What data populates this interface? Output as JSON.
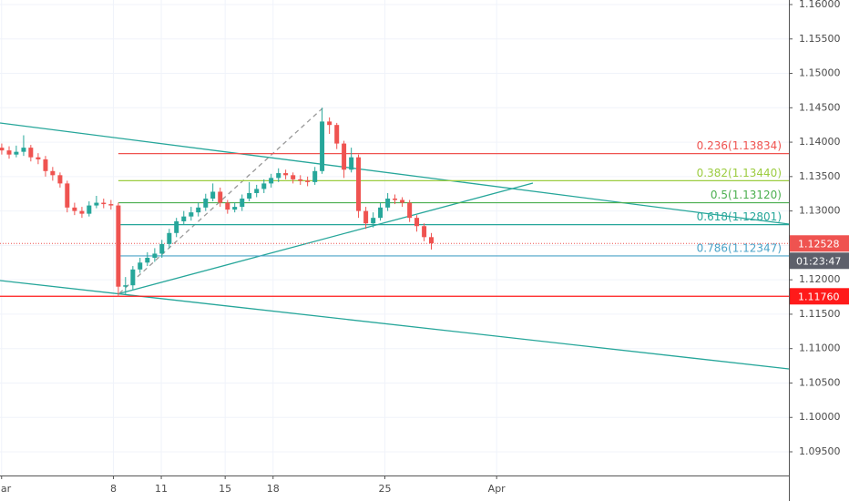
{
  "chart_data": {
    "type": "candlestick",
    "xlim": [
      0.9,
      50.3
    ],
    "xticks": [
      {
        "value": 1,
        "label": "Mar"
      },
      11,
      18,
      25,
      {
        "value": 32,
        "label": "Apr"
      },
      8,
      15
    ],
    "ylim": [
      1.09156,
      1.16066
    ],
    "yticks": [
      {
        "value": 1.16,
        "label": "1.16000"
      },
      {
        "value": 1.155,
        "label": "1.15500"
      },
      {
        "value": 1.15,
        "label": "1.15000"
      },
      {
        "value": 1.145,
        "label": "1.14500"
      },
      {
        "value": 1.14,
        "label": "1.14000"
      },
      {
        "value": 1.135,
        "label": "1.13500"
      },
      {
        "value": 1.13,
        "label": "1.13000"
      },
      {
        "value": 1.125,
        "label": "1.12500"
      },
      {
        "value": 1.12,
        "label": "1.12000"
      },
      {
        "value": 1.115,
        "label": "1.11500"
      },
      {
        "value": 1.11,
        "label": "1.11000"
      },
      {
        "value": 1.105,
        "label": "1.10500"
      },
      {
        "value": 1.1,
        "label": "1.10000"
      },
      {
        "value": 1.095,
        "label": "1.09500"
      }
    ],
    "grid": true,
    "up_color": "#26a69a",
    "down_color": "#ef5350",
    "series": [
      {
        "x": [
          1.01,
          1.47,
          1.92,
          2.38,
          2.83,
          3.29,
          3.75,
          4.2,
          4.66,
          5.11,
          5.57,
          6.03,
          6.48,
          6.94,
          7.39,
          7.85,
          8.31,
          8.76,
          9.22,
          9.67,
          10.13,
          10.59,
          11.04,
          11.5,
          11.95,
          12.41,
          12.87,
          13.32,
          13.78,
          14.23,
          14.69,
          15.15,
          15.6,
          16.06,
          16.51,
          16.97,
          17.43,
          17.88,
          18.34,
          18.79,
          19.25,
          19.71,
          20.16,
          20.62,
          21.07,
          21.53,
          21.99,
          22.44,
          22.9,
          23.35,
          23.81,
          24.27,
          24.72,
          25.18,
          25.63,
          26.09,
          26.55,
          27,
          27.46,
          27.91
        ],
        "open": [
          1.1392,
          1.1388,
          1.1382,
          1.1386,
          1.1392,
          1.1378,
          1.1375,
          1.1358,
          1.1352,
          1.134,
          1.1305,
          1.13,
          1.1296,
          1.1308,
          1.1312,
          1.131,
          1.1308,
          1.119,
          1.1192,
          1.1215,
          1.1225,
          1.1232,
          1.1238,
          1.1252,
          1.1268,
          1.1285,
          1.1292,
          1.1298,
          1.1305,
          1.1318,
          1.1328,
          1.1312,
          1.1302,
          1.1306,
          1.1318,
          1.1326,
          1.1332,
          1.134,
          1.1348,
          1.1355,
          1.1352,
          1.1346,
          1.1344,
          1.1342,
          1.1358,
          1.143,
          1.1425,
          1.1398,
          1.136,
          1.1378,
          1.13,
          1.1282,
          1.129,
          1.1305,
          1.1318,
          1.1316,
          1.1312,
          1.129,
          1.1278,
          1.1262
        ],
        "high": [
          1.1398,
          1.1394,
          1.1395,
          1.141,
          1.1396,
          1.1384,
          1.138,
          1.1364,
          1.1356,
          1.1344,
          1.1312,
          1.1306,
          1.1314,
          1.1322,
          1.1318,
          1.1316,
          1.1312,
          1.1204,
          1.122,
          1.1232,
          1.124,
          1.1246,
          1.1258,
          1.1274,
          1.129,
          1.13,
          1.1306,
          1.1312,
          1.1325,
          1.134,
          1.1334,
          1.1316,
          1.1312,
          1.1324,
          1.1342,
          1.1338,
          1.1346,
          1.1354,
          1.1362,
          1.136,
          1.1356,
          1.1352,
          1.135,
          1.1364,
          1.145,
          1.1436,
          1.1428,
          1.1402,
          1.1392,
          1.1382,
          1.1306,
          1.1298,
          1.1312,
          1.1326,
          1.1324,
          1.132,
          1.1316,
          1.1294,
          1.1282,
          1.1268
        ],
        "low": [
          1.1382,
          1.1376,
          1.1378,
          1.138,
          1.1372,
          1.1368,
          1.135,
          1.1344,
          1.1334,
          1.1298,
          1.1294,
          1.129,
          1.1292,
          1.1304,
          1.1304,
          1.1302,
          1.1176,
          1.1178,
          1.1186,
          1.121,
          1.122,
          1.1226,
          1.1232,
          1.1246,
          1.1262,
          1.128,
          1.1286,
          1.1292,
          1.13,
          1.1314,
          1.1306,
          1.1296,
          1.1298,
          1.13,
          1.1314,
          1.132,
          1.1326,
          1.1334,
          1.1342,
          1.1346,
          1.134,
          1.1338,
          1.1336,
          1.1338,
          1.1354,
          1.1412,
          1.139,
          1.1348,
          1.1356,
          1.129,
          1.1274,
          1.1276,
          1.1286,
          1.13,
          1.131,
          1.1306,
          1.1284,
          1.127,
          1.1256,
          1.1244
        ],
        "close": [
          1.1388,
          1.1382,
          1.1386,
          1.1392,
          1.1378,
          1.1375,
          1.1358,
          1.1352,
          1.134,
          1.1305,
          1.13,
          1.1296,
          1.1308,
          1.1312,
          1.131,
          1.1308,
          1.119,
          1.1192,
          1.1215,
          1.1225,
          1.1232,
          1.1238,
          1.1252,
          1.1268,
          1.1285,
          1.1292,
          1.1298,
          1.1305,
          1.1318,
          1.1328,
          1.1312,
          1.1302,
          1.1306,
          1.1318,
          1.1326,
          1.1332,
          1.134,
          1.1348,
          1.1355,
          1.1352,
          1.1346,
          1.1344,
          1.1342,
          1.1358,
          1.143,
          1.1425,
          1.1398,
          1.136,
          1.1378,
          1.13,
          1.1282,
          1.129,
          1.1305,
          1.1318,
          1.1316,
          1.1312,
          1.129,
          1.1278,
          1.1262,
          1.1253
        ]
      }
    ],
    "fib_start_x": 8.31,
    "fib_levels": [
      {
        "label": "0.236(1.13834)",
        "value": 1.13834,
        "color": "#ef5350"
      },
      {
        "label": "0.382(1.13440)",
        "value": 1.1344,
        "color": "#9ccc40"
      },
      {
        "label": "0.5(1.13120)",
        "value": 1.1312,
        "color": "#4caf50"
      },
      {
        "label": "0.618(1.12801)",
        "value": 1.12801,
        "color": "#26a69a"
      },
      {
        "label": "0.786(1.12347)",
        "value": 1.12347,
        "color": "#4aa3c8"
      }
    ],
    "trend_lines": [
      {
        "x": [
          0.9,
          50.3
        ],
        "y": [
          1.14279,
          1.1281
        ],
        "color": "#26a69a",
        "dashed": false
      },
      {
        "x": [
          0.9,
          50.3
        ],
        "y": [
          1.11989,
          1.10705
        ],
        "color": "#26a69a",
        "dashed": false
      },
      {
        "x": [
          8.43,
          34.27
        ],
        "y": [
          1.11803,
          1.13405
        ],
        "color": "#26a69a",
        "dashed": false
      },
      {
        "x": [
          8.37,
          21.15
        ],
        "y": [
          1.11803,
          1.14504
        ],
        "color": "#999999",
        "dashed": true
      }
    ],
    "price_lines": [
      {
        "value": 1.12528,
        "label": "1.12528",
        "color": "#ef5350",
        "dotted": true
      },
      {
        "value": 1.1176,
        "label": "1.11760",
        "color": "#ff1a1a",
        "dotted": false
      }
    ],
    "countdown": "01:23:47"
  }
}
